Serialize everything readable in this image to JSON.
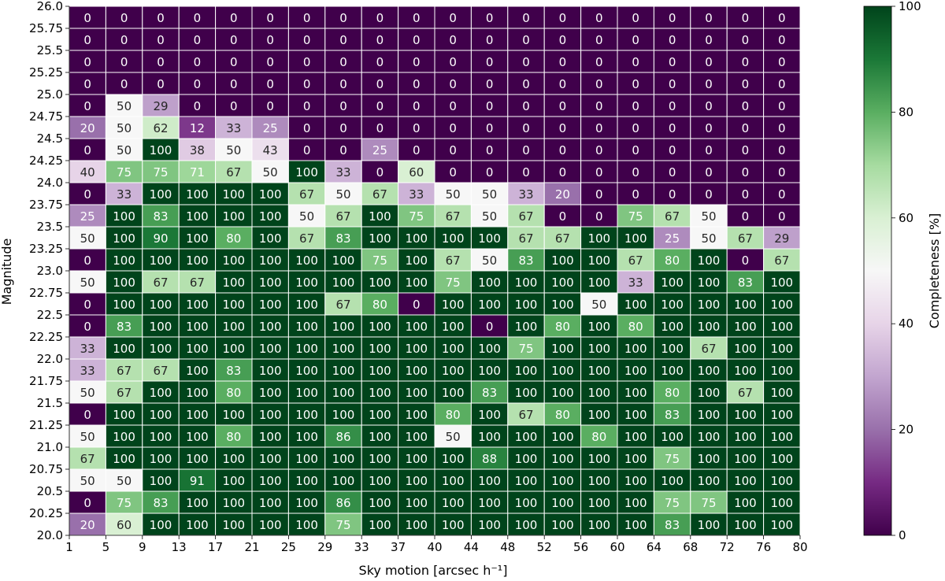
{
  "chart_data": {
    "type": "heatmap",
    "xlabel": "Sky motion [arcsec h⁻¹]",
    "ylabel": "Magnitude",
    "x_ticks": [
      "1",
      "5",
      "9",
      "13",
      "17",
      "21",
      "25",
      "29",
      "33",
      "37",
      "40",
      "44",
      "48",
      "52",
      "56",
      "60",
      "64",
      "68",
      "72",
      "76",
      "80"
    ],
    "y_ticks": [
      "26.0",
      "25.75",
      "25.5",
      "25.25",
      "25.0",
      "24.75",
      "24.5",
      "24.25",
      "24.0",
      "23.75",
      "23.5",
      "23.25",
      "23.0",
      "22.75",
      "22.5",
      "22.25",
      "22.0",
      "21.75",
      "21.5",
      "21.25",
      "21.0",
      "20.75",
      "20.5",
      "20.25",
      "20.0"
    ],
    "values": [
      [
        0,
        0,
        0,
        0,
        0,
        0,
        0,
        0,
        0,
        0,
        0,
        0,
        0,
        0,
        0,
        0,
        0,
        0,
        0,
        0
      ],
      [
        0,
        0,
        0,
        0,
        0,
        0,
        0,
        0,
        0,
        0,
        0,
        0,
        0,
        0,
        0,
        0,
        0,
        0,
        0,
        0
      ],
      [
        0,
        0,
        0,
        0,
        0,
        0,
        0,
        0,
        0,
        0,
        0,
        0,
        0,
        0,
        0,
        0,
        0,
        0,
        0,
        0
      ],
      [
        0,
        0,
        0,
        0,
        0,
        0,
        0,
        0,
        0,
        0,
        0,
        0,
        0,
        0,
        0,
        0,
        0,
        0,
        0,
        0
      ],
      [
        0,
        50,
        29,
        0,
        0,
        0,
        0,
        0,
        0,
        0,
        0,
        0,
        0,
        0,
        0,
        0,
        0,
        0,
        0,
        0
      ],
      [
        20,
        50,
        62,
        12,
        33,
        25,
        0,
        0,
        0,
        0,
        0,
        0,
        0,
        0,
        0,
        0,
        0,
        0,
        0,
        0
      ],
      [
        0,
        50,
        100,
        38,
        50,
        43,
        0,
        0,
        25,
        0,
        0,
        0,
        0,
        0,
        0,
        0,
        0,
        0,
        0,
        0
      ],
      [
        40,
        75,
        75,
        71,
        67,
        50,
        100,
        33,
        0,
        60,
        0,
        0,
        0,
        0,
        0,
        0,
        0,
        0,
        0,
        0
      ],
      [
        0,
        33,
        100,
        100,
        100,
        100,
        67,
        50,
        67,
        33,
        50,
        50,
        33,
        20,
        0,
        0,
        0,
        0,
        0,
        0
      ],
      [
        25,
        100,
        83,
        100,
        100,
        100,
        50,
        67,
        100,
        75,
        67,
        50,
        67,
        0,
        0,
        75,
        67,
        50,
        0,
        0
      ],
      [
        50,
        100,
        90,
        100,
        80,
        100,
        67,
        83,
        100,
        100,
        100,
        100,
        67,
        67,
        100,
        100,
        25,
        50,
        67,
        29
      ],
      [
        0,
        100,
        100,
        100,
        100,
        100,
        100,
        100,
        75,
        100,
        67,
        50,
        83,
        100,
        100,
        67,
        80,
        100,
        0,
        67
      ],
      [
        50,
        100,
        67,
        67,
        100,
        100,
        100,
        100,
        100,
        100,
        75,
        100,
        100,
        100,
        100,
        33,
        100,
        100,
        83,
        100
      ],
      [
        0,
        100,
        100,
        100,
        100,
        100,
        100,
        67,
        80,
        0,
        100,
        100,
        100,
        100,
        50,
        100,
        100,
        100,
        100,
        100
      ],
      [
        0,
        83,
        100,
        100,
        100,
        100,
        100,
        100,
        100,
        100,
        100,
        0,
        100,
        80,
        100,
        80,
        100,
        100,
        100,
        100
      ],
      [
        33,
        100,
        100,
        100,
        100,
        100,
        100,
        100,
        100,
        100,
        100,
        100,
        75,
        100,
        100,
        100,
        100,
        67,
        100,
        100
      ],
      [
        33,
        67,
        67,
        100,
        83,
        100,
        100,
        100,
        100,
        100,
        100,
        100,
        100,
        100,
        100,
        100,
        100,
        100,
        100,
        100
      ],
      [
        50,
        67,
        100,
        100,
        80,
        100,
        100,
        100,
        100,
        100,
        100,
        83,
        100,
        100,
        100,
        100,
        80,
        100,
        67,
        100
      ],
      [
        0,
        100,
        100,
        100,
        100,
        100,
        100,
        100,
        100,
        100,
        80,
        100,
        67,
        80,
        100,
        100,
        83,
        100,
        100,
        100
      ],
      [
        50,
        100,
        100,
        100,
        80,
        100,
        100,
        86,
        100,
        100,
        50,
        100,
        100,
        100,
        80,
        100,
        100,
        100,
        100,
        100
      ],
      [
        67,
        100,
        100,
        100,
        100,
        100,
        100,
        100,
        100,
        100,
        100,
        88,
        100,
        100,
        100,
        100,
        75,
        100,
        100,
        100
      ],
      [
        50,
        50,
        100,
        91,
        100,
        100,
        100,
        100,
        100,
        100,
        100,
        100,
        100,
        100,
        100,
        100,
        100,
        100,
        100,
        100
      ],
      [
        0,
        75,
        83,
        100,
        100,
        100,
        100,
        86,
        100,
        100,
        100,
        100,
        100,
        100,
        100,
        100,
        75,
        75,
        100,
        100
      ],
      [
        20,
        60,
        100,
        100,
        100,
        100,
        100,
        75,
        100,
        100,
        100,
        100,
        100,
        100,
        100,
        100,
        83,
        100,
        100,
        100
      ]
    ],
    "colorbar": {
      "label": "Completeness [%]",
      "min": 0,
      "max": 100,
      "ticks": [
        "0",
        "20",
        "40",
        "60",
        "80",
        "100"
      ]
    },
    "colormap": "PRGn",
    "grid": false,
    "legend": "right"
  }
}
